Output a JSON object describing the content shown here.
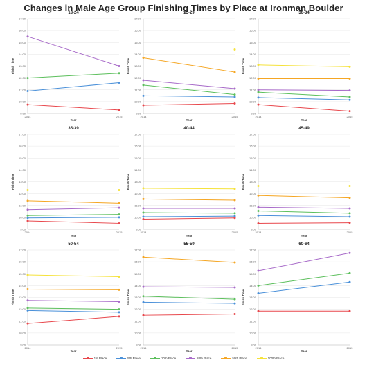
{
  "title": "Changes in Male Age Group Finishing Times by Place at Ironman Boulder",
  "legend_items": [
    {
      "label": "1st Place",
      "color": "#e8474c"
    },
    {
      "label": "5th Place",
      "color": "#4a90d9"
    },
    {
      "label": "10th Place",
      "color": "#5cbf5c"
    },
    {
      "label": "20th Place",
      "color": "#a86bc9"
    },
    {
      "label": "50th Place",
      "color": "#f5a623"
    },
    {
      "label": "100th Place",
      "color": "#f5e23a"
    }
  ],
  "chart_data": [
    {
      "type": "line",
      "title": "18-24",
      "xlabel": "Year",
      "ylabel": "Finish Time",
      "x": [
        "2014",
        "2015"
      ],
      "y_ticks": [
        "9:00",
        "10:00",
        "11:00",
        "12:00",
        "13:00",
        "14:00",
        "15:00",
        "16:00",
        "17:00"
      ],
      "ylim": [
        9,
        17
      ],
      "grid": true,
      "series": [
        {
          "name": "1st Place",
          "values": [
            9.75,
            9.3
          ]
        },
        {
          "name": "5th Place",
          "values": [
            10.9,
            11.6
          ]
        },
        {
          "name": "10th Place",
          "values": [
            12.0,
            12.4
          ]
        },
        {
          "name": "20th Place",
          "values": [
            15.5,
            13.0
          ]
        }
      ]
    },
    {
      "type": "line",
      "title": "25-29",
      "xlabel": "Year",
      "ylabel": "Finish Time",
      "x": [
        "2014",
        "2015"
      ],
      "y_ticks": [
        "9:00",
        "10:00",
        "11:00",
        "12:00",
        "13:00",
        "14:00",
        "15:00",
        "16:00",
        "17:00"
      ],
      "ylim": [
        9,
        17
      ],
      "grid": true,
      "series": [
        {
          "name": "1st Place",
          "values": [
            9.7,
            9.85
          ]
        },
        {
          "name": "5th Place",
          "values": [
            10.5,
            10.4
          ]
        },
        {
          "name": "10th Place",
          "values": [
            11.4,
            10.6
          ]
        },
        {
          "name": "20th Place",
          "values": [
            11.8,
            11.1
          ]
        },
        {
          "name": "50th Place",
          "values": [
            13.7,
            12.5
          ]
        },
        {
          "name": "100th Place",
          "values": [
            null,
            14.4
          ]
        }
      ]
    },
    {
      "type": "line",
      "title": "30-34",
      "xlabel": "Year",
      "ylabel": "Finish Time",
      "x": [
        "2014",
        "2015"
      ],
      "y_ticks": [
        "9:00",
        "10:00",
        "11:00",
        "12:00",
        "13:00",
        "14:00",
        "15:00",
        "16:00",
        "17:00"
      ],
      "ylim": [
        9,
        17
      ],
      "grid": true,
      "series": [
        {
          "name": "1st Place",
          "values": [
            9.75,
            9.2
          ]
        },
        {
          "name": "5th Place",
          "values": [
            10.35,
            10.15
          ]
        },
        {
          "name": "10th Place",
          "values": [
            10.8,
            10.4
          ]
        },
        {
          "name": "20th Place",
          "values": [
            11.0,
            10.95
          ]
        },
        {
          "name": "50th Place",
          "values": [
            11.95,
            11.95
          ]
        },
        {
          "name": "100th Place",
          "values": [
            13.1,
            12.95
          ]
        }
      ]
    },
    {
      "type": "line",
      "title": "35-39",
      "xlabel": "Year",
      "ylabel": "Finish Time",
      "x": [
        "2014",
        "2015"
      ],
      "y_ticks": [
        "9:00",
        "10:00",
        "11:00",
        "12:00",
        "13:00",
        "14:00",
        "15:00",
        "16:00",
        "17:00"
      ],
      "ylim": [
        9,
        17
      ],
      "grid": true,
      "series": [
        {
          "name": "1st Place",
          "values": [
            9.7,
            9.5
          ]
        },
        {
          "name": "5th Place",
          "values": [
            9.95,
            10.0
          ]
        },
        {
          "name": "10th Place",
          "values": [
            10.15,
            10.25
          ]
        },
        {
          "name": "20th Place",
          "values": [
            10.65,
            10.8
          ]
        },
        {
          "name": "50th Place",
          "values": [
            11.4,
            11.2
          ]
        },
        {
          "name": "100th Place",
          "values": [
            12.3,
            12.3
          ]
        }
      ]
    },
    {
      "type": "line",
      "title": "40-44",
      "xlabel": "Year",
      "ylabel": "Finish Time",
      "x": [
        "2014",
        "2015"
      ],
      "y_ticks": [
        "9:00",
        "10:00",
        "11:00",
        "12:00",
        "13:00",
        "14:00",
        "15:00",
        "16:00",
        "17:00"
      ],
      "ylim": [
        9,
        17
      ],
      "grid": true,
      "series": [
        {
          "name": "1st Place",
          "values": [
            9.85,
            9.95
          ]
        },
        {
          "name": "5th Place",
          "values": [
            10.05,
            10.1
          ]
        },
        {
          "name": "10th Place",
          "values": [
            10.4,
            10.35
          ]
        },
        {
          "name": "20th Place",
          "values": [
            10.75,
            10.75
          ]
        },
        {
          "name": "50th Place",
          "values": [
            11.55,
            11.45
          ]
        },
        {
          "name": "100th Place",
          "values": [
            12.45,
            12.4
          ]
        }
      ]
    },
    {
      "type": "line",
      "title": "45-49",
      "xlabel": "Year",
      "ylabel": "Finish Time",
      "x": [
        "2014",
        "2015"
      ],
      "y_ticks": [
        "9:00",
        "10:00",
        "11:00",
        "12:00",
        "13:00",
        "14:00",
        "15:00",
        "16:00",
        "17:00"
      ],
      "ylim": [
        9,
        17
      ],
      "grid": true,
      "series": [
        {
          "name": "1st Place",
          "values": [
            9.5,
            9.55
          ]
        },
        {
          "name": "5th Place",
          "values": [
            10.15,
            10.05
          ]
        },
        {
          "name": "10th Place",
          "values": [
            10.55,
            10.35
          ]
        },
        {
          "name": "20th Place",
          "values": [
            10.85,
            10.75
          ]
        },
        {
          "name": "50th Place",
          "values": [
            11.85,
            11.65
          ]
        },
        {
          "name": "100th Place",
          "values": [
            12.65,
            12.65
          ]
        }
      ]
    },
    {
      "type": "line",
      "title": "50-54",
      "xlabel": "Year",
      "ylabel": "Finish Time",
      "x": [
        "2014",
        "2015"
      ],
      "y_ticks": [
        "9:00",
        "10:00",
        "11:00",
        "12:00",
        "13:00",
        "14:00",
        "15:00",
        "16:00",
        "17:00"
      ],
      "ylim": [
        9,
        17
      ],
      "grid": true,
      "series": [
        {
          "name": "1st Place",
          "values": [
            10.8,
            11.4
          ]
        },
        {
          "name": "5th Place",
          "values": [
            11.9,
            11.75
          ]
        },
        {
          "name": "10th Place",
          "values": [
            12.1,
            12.0
          ]
        },
        {
          "name": "20th Place",
          "values": [
            12.75,
            12.65
          ]
        },
        {
          "name": "50th Place",
          "values": [
            13.7,
            13.65
          ]
        },
        {
          "name": "100th Place",
          "values": [
            14.9,
            14.75
          ]
        }
      ]
    },
    {
      "type": "line",
      "title": "55-59",
      "xlabel": "Year",
      "ylabel": "Finish Time",
      "x": [
        "2014",
        "2015"
      ],
      "y_ticks": [
        "9:00",
        "10:00",
        "11:00",
        "12:00",
        "13:00",
        "14:00",
        "15:00",
        "16:00",
        "17:00"
      ],
      "ylim": [
        9,
        17
      ],
      "grid": true,
      "series": [
        {
          "name": "1st Place",
          "values": [
            11.5,
            11.6
          ]
        },
        {
          "name": "5th Place",
          "values": [
            12.6,
            12.5
          ]
        },
        {
          "name": "10th Place",
          "values": [
            13.1,
            12.85
          ]
        },
        {
          "name": "20th Place",
          "values": [
            13.9,
            13.85
          ]
        },
        {
          "name": "50th Place",
          "values": [
            16.4,
            15.95
          ]
        }
      ]
    },
    {
      "type": "line",
      "title": "60-64",
      "xlabel": "Year",
      "ylabel": "Finish Time",
      "x": [
        "2014",
        "2015"
      ],
      "y_ticks": [
        "9:00",
        "10:00",
        "11:00",
        "12:00",
        "13:00",
        "14:00",
        "15:00",
        "16:00",
        "17:00"
      ],
      "ylim": [
        9,
        17
      ],
      "grid": true,
      "series": [
        {
          "name": "1st Place",
          "values": [
            11.85,
            11.85
          ]
        },
        {
          "name": "5th Place",
          "values": [
            13.35,
            14.3
          ]
        },
        {
          "name": "10th Place",
          "values": [
            14.0,
            15.05
          ]
        },
        {
          "name": "20th Place",
          "values": [
            15.25,
            16.75
          ]
        }
      ]
    }
  ]
}
